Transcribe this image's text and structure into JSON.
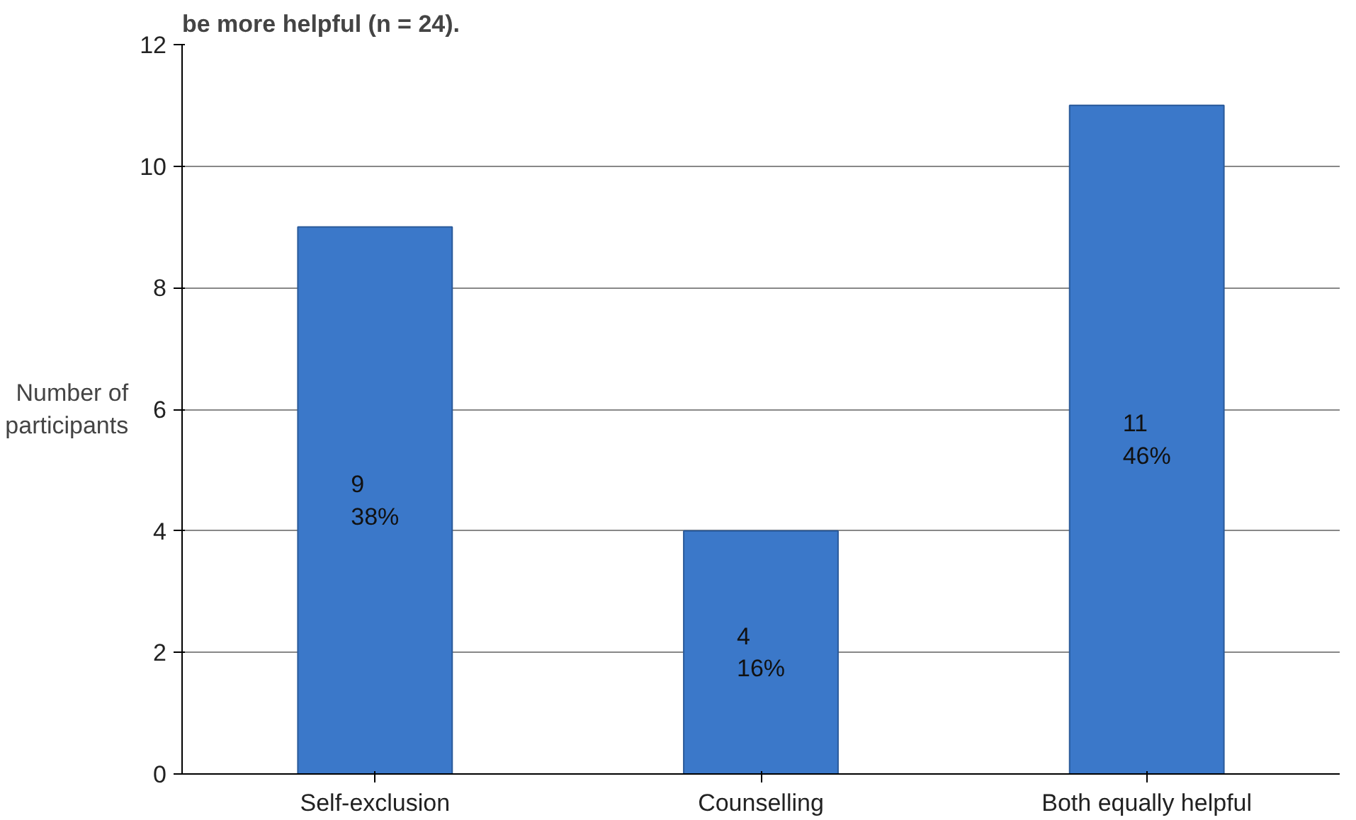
{
  "chart_data": {
    "type": "bar",
    "title": "be more helpful (n = 24).",
    "ylabel": "Number of\nparticipants",
    "categories": [
      "Self-exclusion",
      "Counselling",
      "Both equally helpful"
    ],
    "values": [
      9,
      4,
      11
    ],
    "color": "#3b78c9",
    "value_labels": [
      "9\n38%",
      "4\n16%",
      "11\n46%"
    ],
    "ylim": [
      0,
      12
    ],
    "yticks": [
      0,
      2,
      4,
      6,
      8,
      10,
      12
    ],
    "grid": "y"
  }
}
